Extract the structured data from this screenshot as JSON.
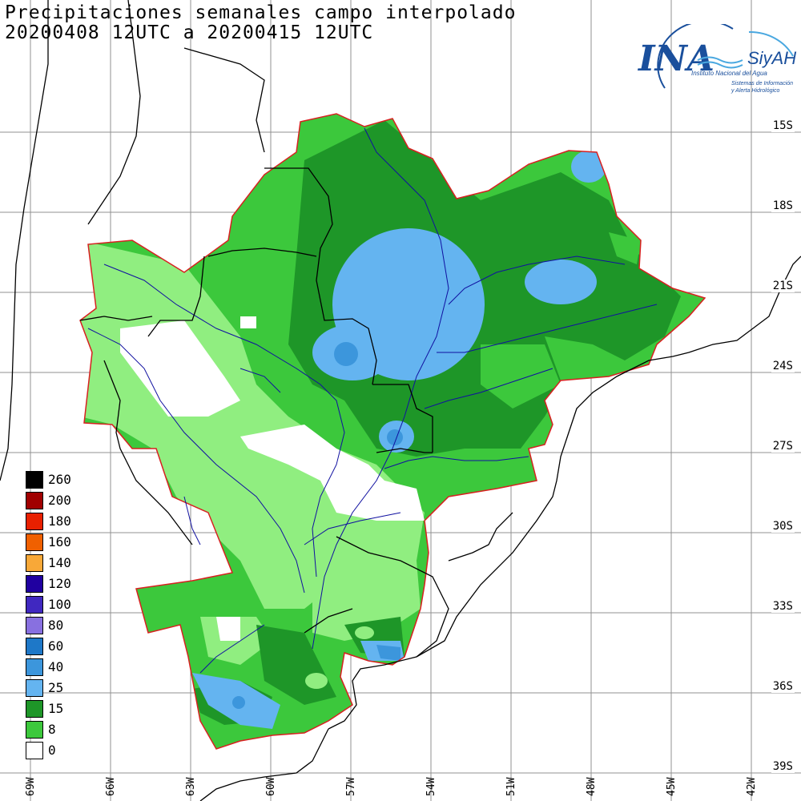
{
  "title": {
    "line1": "Precipitaciones semanales campo interpolado",
    "line2": "20200408 12UTC a 20200415 12UTC"
  },
  "logo": {
    "main": "INA",
    "brand": "SiyAH",
    "subtitle": "Instituto Nacional del Agua",
    "tagline1": "Sistemas de Información",
    "tagline2": "y Alerta Hidrológico"
  },
  "map": {
    "latitude_labels": [
      "15S",
      "18S",
      "21S",
      "24S",
      "27S",
      "30S",
      "33S",
      "36S",
      "39S"
    ],
    "longitude_labels": [
      "69W",
      "66W",
      "63W",
      "60W",
      "57W",
      "54W",
      "51W",
      "48W",
      "45W",
      "42W"
    ]
  },
  "legend": {
    "items": [
      {
        "label": "260",
        "color": "#000000"
      },
      {
        "label": "200",
        "color": "#a00000"
      },
      {
        "label": "180",
        "color": "#e82000"
      },
      {
        "label": "160",
        "color": "#f06000"
      },
      {
        "label": "140",
        "color": "#f8a838"
      },
      {
        "label": "120",
        "color": "#2000a0"
      },
      {
        "label": "100",
        "color": "#4028c0"
      },
      {
        "label": "80",
        "color": "#8870e0"
      },
      {
        "label": "60",
        "color": "#1e78c8"
      },
      {
        "label": "40",
        "color": "#3c96dc"
      },
      {
        "label": "25",
        "color": "#64b4f0"
      },
      {
        "label": "15",
        "color": "#1e9628"
      },
      {
        "label": "8",
        "color": "#3cc83c"
      },
      {
        "label": "0",
        "color": "#ffffff"
      }
    ]
  },
  "colors": {
    "basin_border": "#d82020",
    "rivers": "#1010a0",
    "coast": "#000000",
    "grid": "#909090"
  }
}
